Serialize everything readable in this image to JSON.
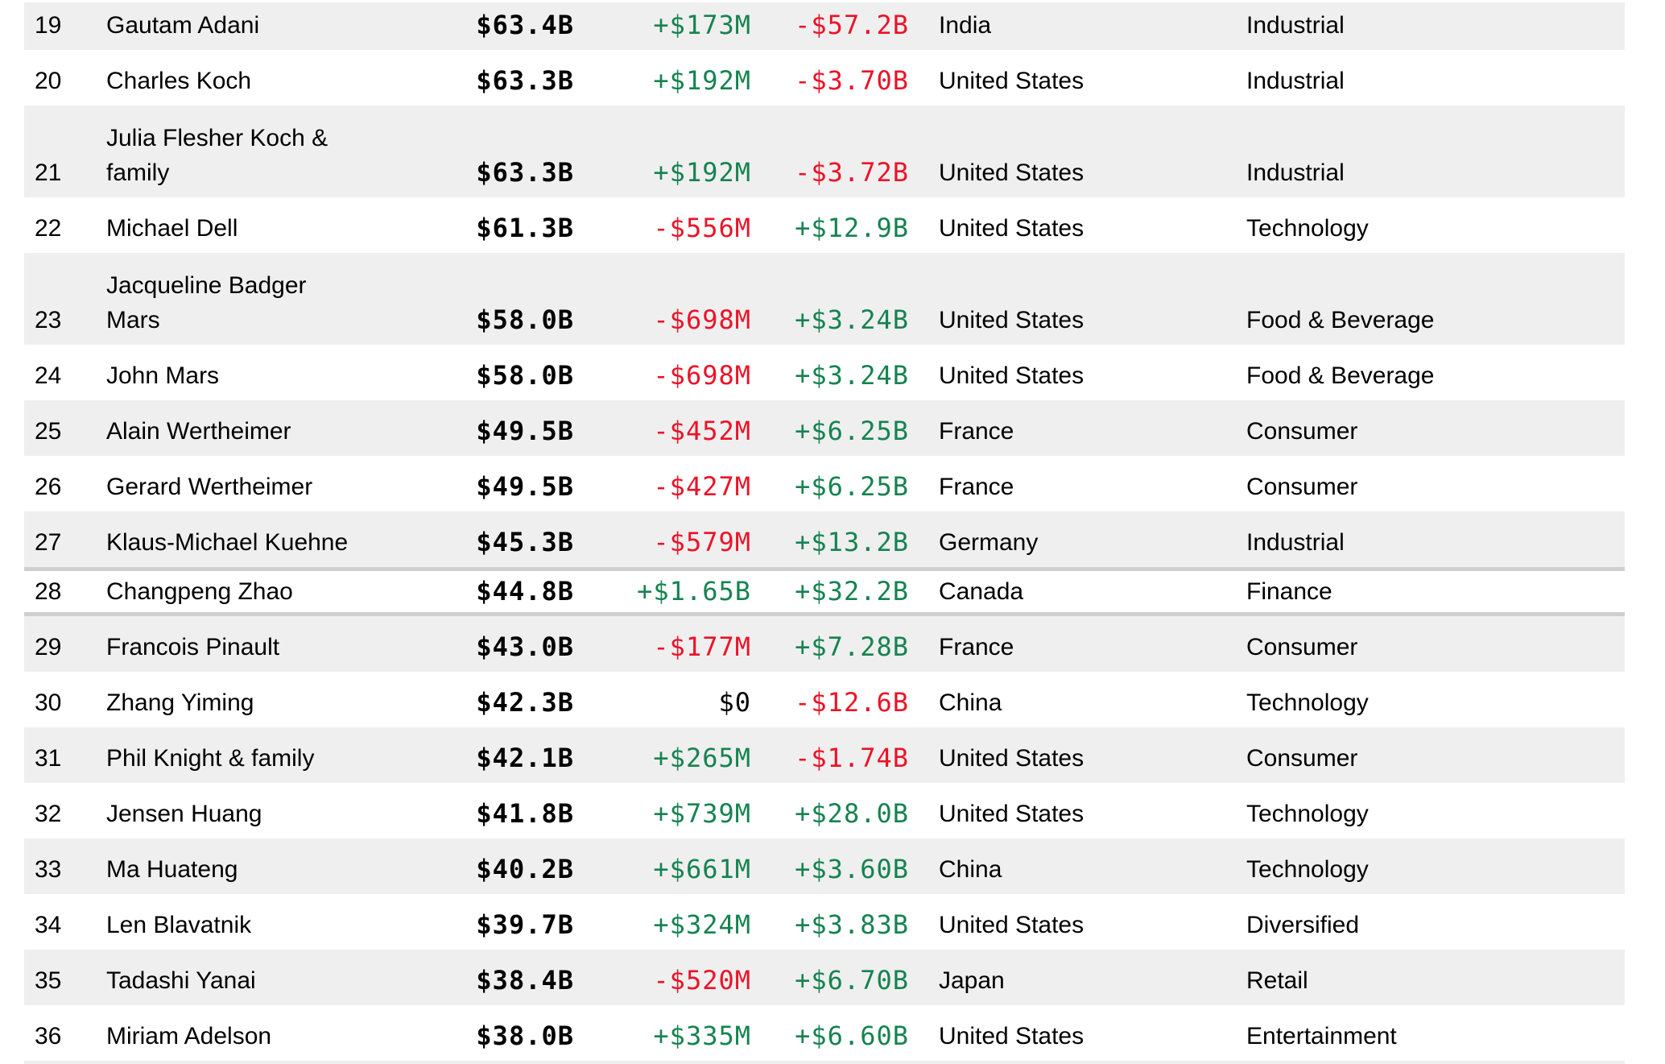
{
  "colors": {
    "positive": "#15834f",
    "negative": "#ec1227",
    "neutral": "#000000",
    "row_alt_bg": "#efefef",
    "highlight_border": "#cfcfcf"
  },
  "table": {
    "rows": [
      {
        "rank": "19",
        "name": "Gautam Adani",
        "net_worth": "$63.4B",
        "last_change": "+$173M",
        "ytd_change": "-$57.2B",
        "country": "India",
        "industry": "Industrial",
        "shaded": true,
        "first": true
      },
      {
        "rank": "20",
        "name": "Charles Koch",
        "net_worth": "$63.3B",
        "last_change": "+$192M",
        "ytd_change": "-$3.70B",
        "country": "United States",
        "industry": "Industrial",
        "shaded": false
      },
      {
        "rank": "21",
        "name": "Julia Flesher Koch &\nfamily",
        "net_worth": "$63.3B",
        "last_change": "+$192M",
        "ytd_change": "-$3.72B",
        "country": "United States",
        "industry": "Industrial",
        "shaded": true
      },
      {
        "rank": "22",
        "name": "Michael Dell",
        "net_worth": "$61.3B",
        "last_change": "-$556M",
        "ytd_change": "+$12.9B",
        "country": "United States",
        "industry": "Technology",
        "shaded": false
      },
      {
        "rank": "23",
        "name": "Jacqueline Badger\nMars",
        "net_worth": "$58.0B",
        "last_change": "-$698M",
        "ytd_change": "+$3.24B",
        "country": "United States",
        "industry": "Food & Beverage",
        "shaded": true
      },
      {
        "rank": "24",
        "name": "John Mars",
        "net_worth": "$58.0B",
        "last_change": "-$698M",
        "ytd_change": "+$3.24B",
        "country": "United States",
        "industry": "Food & Beverage",
        "shaded": false
      },
      {
        "rank": "25",
        "name": "Alain Wertheimer",
        "net_worth": "$49.5B",
        "last_change": "-$452M",
        "ytd_change": "+$6.25B",
        "country": "France",
        "industry": "Consumer",
        "shaded": true
      },
      {
        "rank": "26",
        "name": "Gerard Wertheimer",
        "net_worth": "$49.5B",
        "last_change": "-$427M",
        "ytd_change": "+$6.25B",
        "country": "France",
        "industry": "Consumer",
        "shaded": false
      },
      {
        "rank": "27",
        "name": "Klaus-Michael Kuehne",
        "net_worth": "$45.3B",
        "last_change": "-$579M",
        "ytd_change": "+$13.2B",
        "country": "Germany",
        "industry": "Industrial",
        "shaded": true
      },
      {
        "rank": "28",
        "name": "Changpeng Zhao",
        "net_worth": "$44.8B",
        "last_change": "+$1.65B",
        "ytd_change": "+$32.2B",
        "country": "Canada",
        "industry": "Finance",
        "shaded": false,
        "highlight": true
      },
      {
        "rank": "29",
        "name": "Francois Pinault",
        "net_worth": "$43.0B",
        "last_change": "-$177M",
        "ytd_change": "+$7.28B",
        "country": "France",
        "industry": "Consumer",
        "shaded": true
      },
      {
        "rank": "30",
        "name": "Zhang Yiming",
        "net_worth": "$42.3B",
        "last_change": "$0",
        "ytd_change": "-$12.6B",
        "country": "China",
        "industry": "Technology",
        "shaded": false
      },
      {
        "rank": "31",
        "name": "Phil Knight & family",
        "net_worth": "$42.1B",
        "last_change": "+$265M",
        "ytd_change": "-$1.74B",
        "country": "United States",
        "industry": "Consumer",
        "shaded": true
      },
      {
        "rank": "32",
        "name": "Jensen Huang",
        "net_worth": "$41.8B",
        "last_change": "+$739M",
        "ytd_change": "+$28.0B",
        "country": "United States",
        "industry": "Technology",
        "shaded": false
      },
      {
        "rank": "33",
        "name": "Ma Huateng",
        "net_worth": "$40.2B",
        "last_change": "+$661M",
        "ytd_change": "+$3.60B",
        "country": "China",
        "industry": "Technology",
        "shaded": true
      },
      {
        "rank": "34",
        "name": "Len Blavatnik",
        "net_worth": "$39.7B",
        "last_change": "+$324M",
        "ytd_change": "+$3.83B",
        "country": "United States",
        "industry": "Diversified",
        "shaded": false
      },
      {
        "rank": "35",
        "name": "Tadashi Yanai",
        "net_worth": "$38.4B",
        "last_change": "-$520M",
        "ytd_change": "+$6.70B",
        "country": "Japan",
        "industry": "Retail",
        "shaded": true
      },
      {
        "rank": "36",
        "name": "Miriam Adelson",
        "net_worth": "$38.0B",
        "last_change": "+$335M",
        "ytd_change": "+$6.60B",
        "country": "United States",
        "industry": "Entertainment",
        "shaded": false
      }
    ]
  }
}
